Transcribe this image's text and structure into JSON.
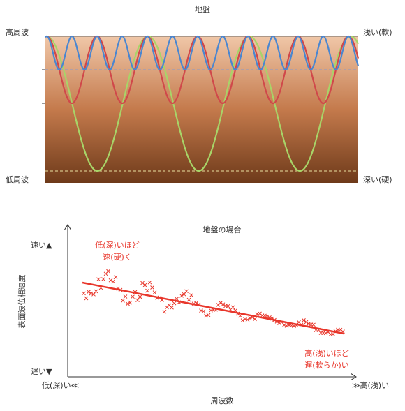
{
  "top": {
    "title": "地盤",
    "left_top": "高周波",
    "left_bottom": "低周波",
    "right_top": "浅い(軟)",
    "right_bottom": "深い(硬)"
  },
  "bottom": {
    "title": "地盤の場合",
    "y_top": "速い▲",
    "y_bottom": "遅い▼",
    "y_label": "表面波位相速度",
    "x_left": "低(深)い≪",
    "x_right": "≫高(浅)い",
    "x_label": "周波数",
    "note_top": [
      "低(深)いほど",
      "速(硬)く"
    ],
    "note_bottom": [
      "高(浅)いほど",
      "遅(軟らか)い"
    ]
  }
}
